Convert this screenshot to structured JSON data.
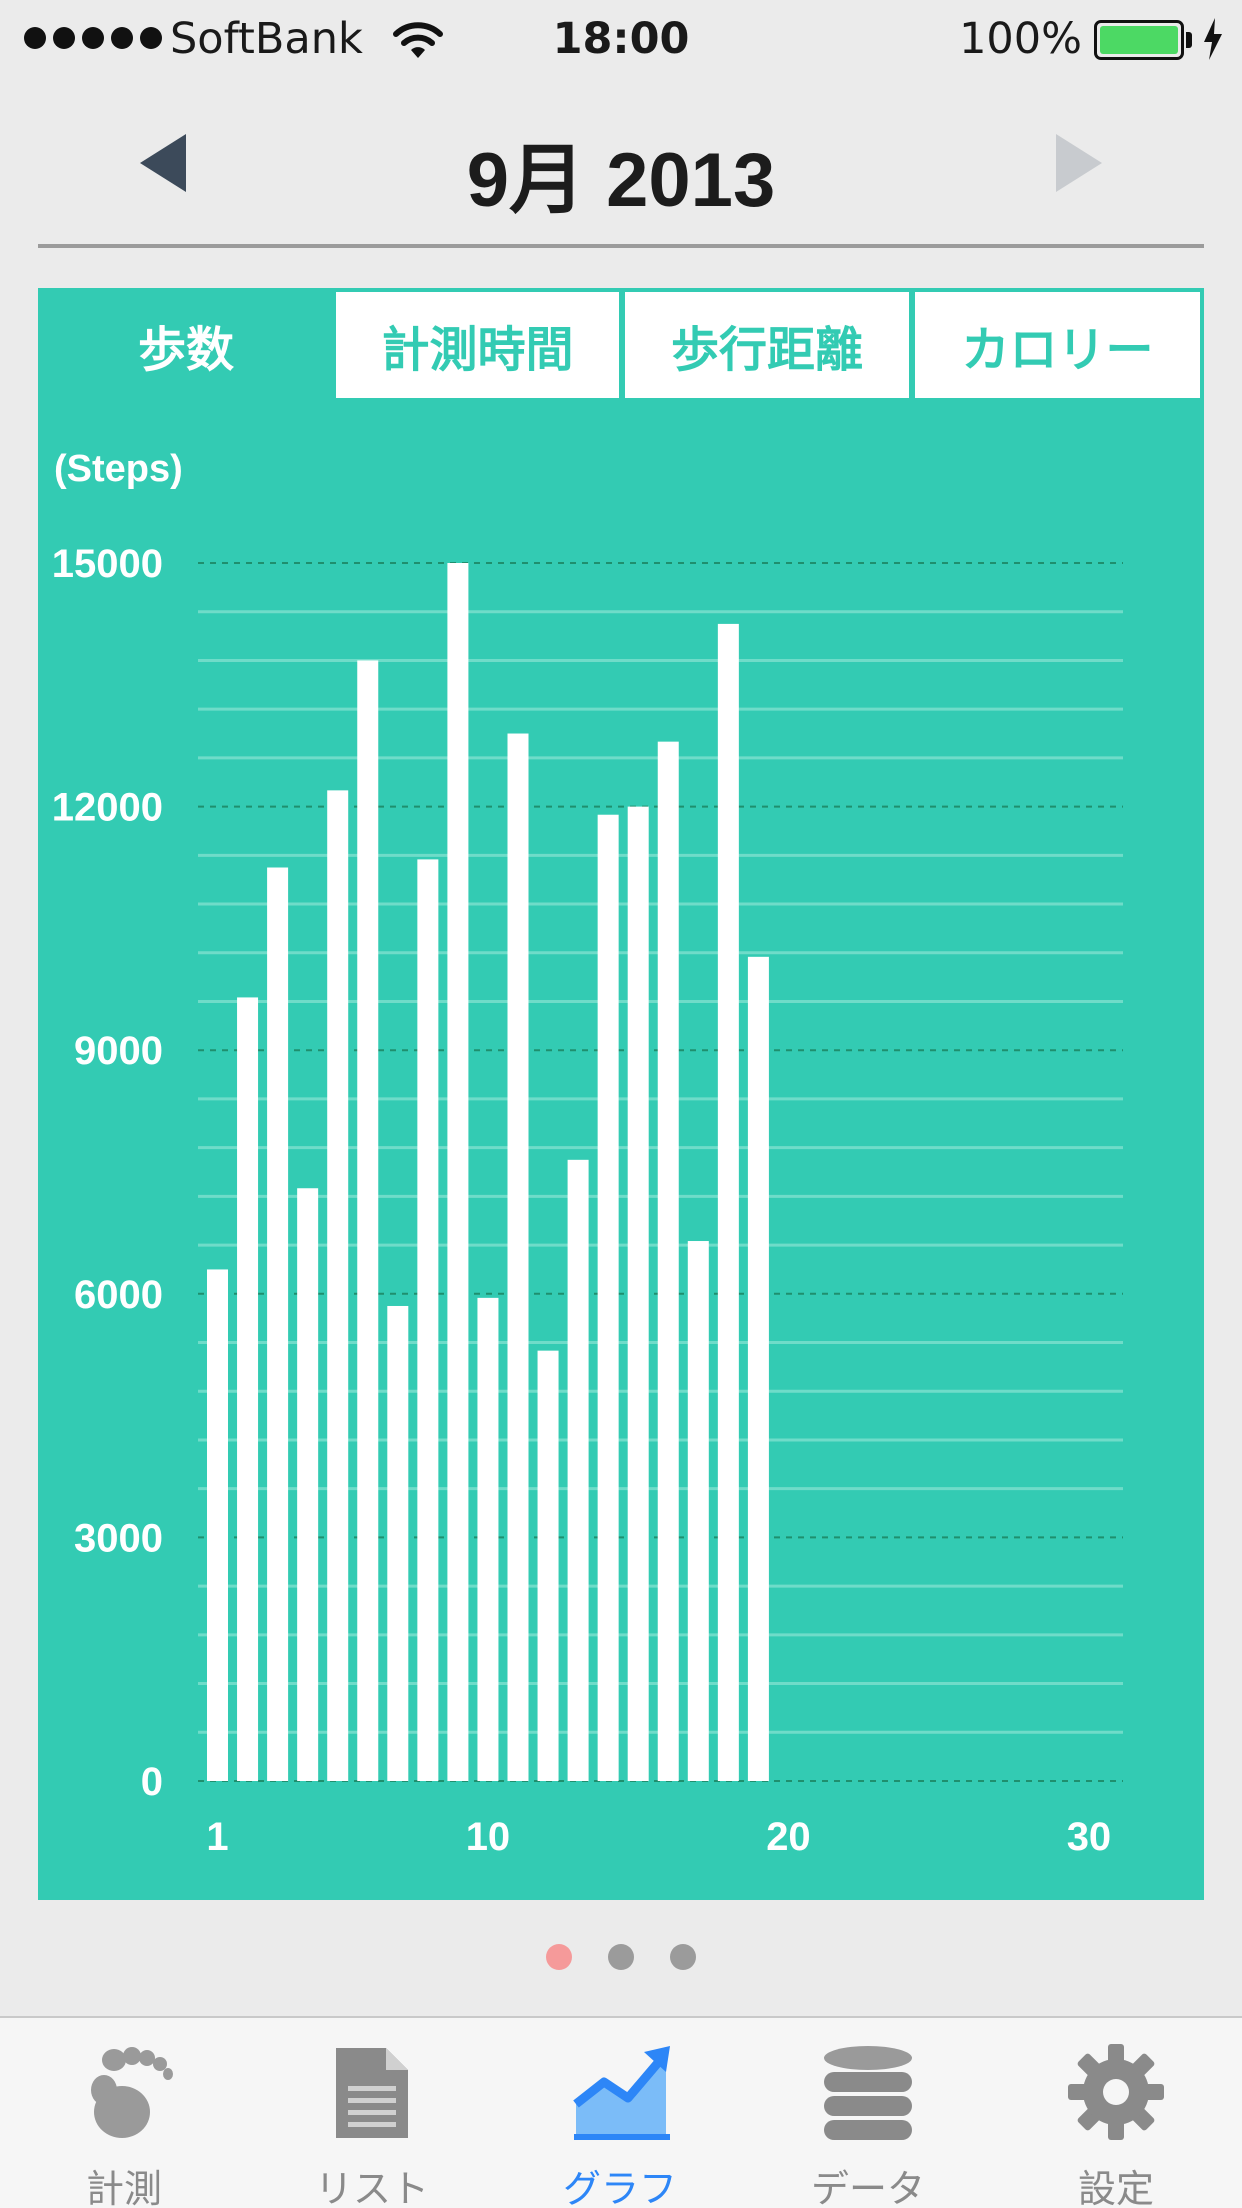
{
  "status_bar": {
    "carrier": "SoftBank",
    "time": "18:00",
    "battery": "100%",
    "signal_icon": "signal-dots-icon",
    "wifi_icon": "wifi-icon",
    "battery_icon": "battery-icon",
    "charging_icon": "bolt-icon"
  },
  "header": {
    "title": "9月 2013",
    "prev_icon": "triangle-left-icon",
    "next_icon": "triangle-right-icon"
  },
  "tabs": [
    {
      "label": "歩数",
      "active": true
    },
    {
      "label": "計測時間",
      "active": false
    },
    {
      "label": "歩行距離",
      "active": false
    },
    {
      "label": "カロリー",
      "active": false
    }
  ],
  "colors": {
    "accent": "#33cbb3",
    "bar": "#ffffff",
    "active_tab": "#2d86f7",
    "page_dot_active": "#f59a9a",
    "page_dot": "#9b9b9b"
  },
  "chart_data": {
    "type": "bar",
    "ylabel": "(Steps)",
    "ylim": [
      0,
      15000
    ],
    "y_ticks": [
      "15000",
      "12000",
      "9000",
      "6000",
      "3000",
      "0"
    ],
    "x_ticks": [
      "1",
      "10",
      "20",
      "30"
    ],
    "x_range": [
      1,
      31
    ],
    "grid": true,
    "days": [
      1,
      2,
      3,
      4,
      5,
      6,
      7,
      8,
      9,
      10,
      11,
      12,
      13,
      14,
      15,
      16,
      17,
      18,
      19
    ],
    "values": [
      6300,
      9650,
      11250,
      7300,
      12200,
      13800,
      5850,
      11350,
      15000,
      5950,
      12900,
      5300,
      7650,
      11900,
      12000,
      12800,
      6650,
      14250,
      10150
    ]
  },
  "page_dots": {
    "count": 3,
    "active": 0
  },
  "tab_bar": [
    {
      "label": "計測",
      "icon": "footprint-icon",
      "active": false
    },
    {
      "label": "リスト",
      "icon": "document-list-icon",
      "active": false
    },
    {
      "label": "グラフ",
      "icon": "chart-icon",
      "active": true
    },
    {
      "label": "データ",
      "icon": "database-icon",
      "active": false
    },
    {
      "label": "設定",
      "icon": "gear-icon",
      "active": false
    }
  ]
}
